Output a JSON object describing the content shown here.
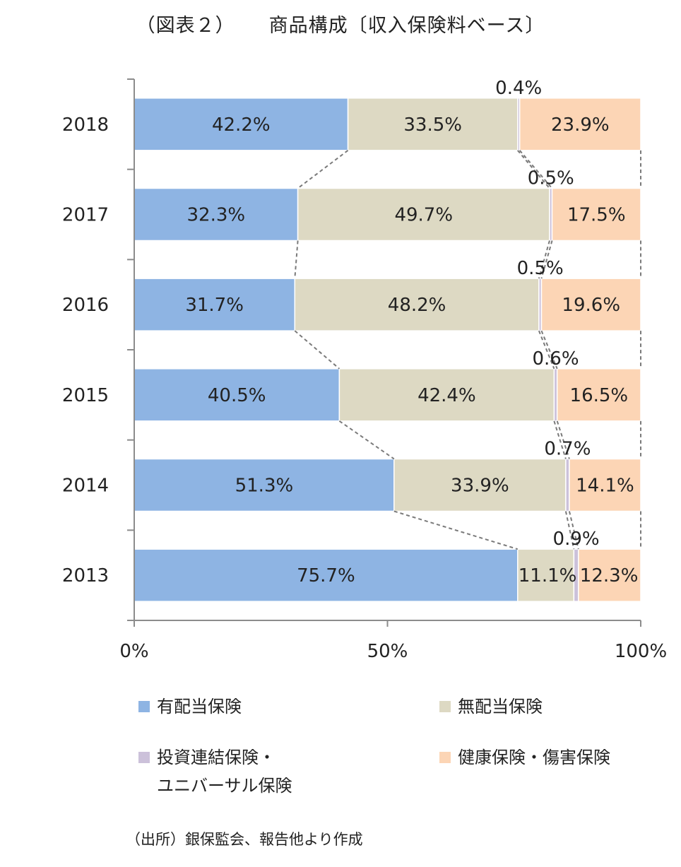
{
  "title": {
    "prefix": "（図表２）",
    "main": "商品構成〔収入保険料ベース〕"
  },
  "chart_data": {
    "type": "bar",
    "orientation": "horizontal",
    "stacked": "percent",
    "categories": [
      "2018",
      "2017",
      "2016",
      "2015",
      "2014",
      "2013"
    ],
    "series": [
      {
        "name": "有配当保険",
        "color": "#8EB4E3",
        "values": [
          42.2,
          32.3,
          31.7,
          40.5,
          51.3,
          75.7
        ],
        "labels": [
          "42.2%",
          "32.3%",
          "31.7%",
          "40.5%",
          "51.3%",
          "75.7%"
        ]
      },
      {
        "name": "無配当保険",
        "color": "#DDD9C3",
        "values": [
          33.5,
          49.7,
          48.2,
          42.4,
          33.9,
          11.1
        ],
        "labels": [
          "33.5%",
          "49.7%",
          "48.2%",
          "42.4%",
          "33.9%",
          "11.1%"
        ]
      },
      {
        "name": "投資連結保険・ユニバーサル保険",
        "color": "#CCC1DA",
        "values": [
          0.4,
          0.5,
          0.5,
          0.6,
          0.7,
          0.9
        ],
        "labels": [
          "0.4%",
          "0.5%",
          "0.5%",
          "0.6%",
          "0.7%",
          "0.9%"
        ]
      },
      {
        "name": "健康保険・傷害保険",
        "color": "#FCD5B5",
        "values": [
          23.9,
          17.5,
          19.6,
          16.5,
          14.1,
          12.3
        ],
        "labels": [
          "23.9%",
          "17.5%",
          "19.6%",
          "16.5%",
          "14.1%",
          "12.3%"
        ]
      }
    ],
    "x_ticks": [
      "0%",
      "50%",
      "100%"
    ],
    "xlim": [
      0,
      100
    ],
    "series_lines": "dashed",
    "legend_position": "bottom",
    "grid": false
  },
  "legend": [
    {
      "lines": [
        "有配当保険"
      ],
      "color": "#8EB4E3"
    },
    {
      "lines": [
        "無配当保険"
      ],
      "color": "#DDD9C3"
    },
    {
      "lines": [
        "投資連結保険・",
        "ユニバーサル保険"
      ],
      "color": "#CCC1DA"
    },
    {
      "lines": [
        "健康保険・傷害保険"
      ],
      "color": "#FCD5B5"
    }
  ],
  "source": "（出所）銀保監会、報告他より作成"
}
